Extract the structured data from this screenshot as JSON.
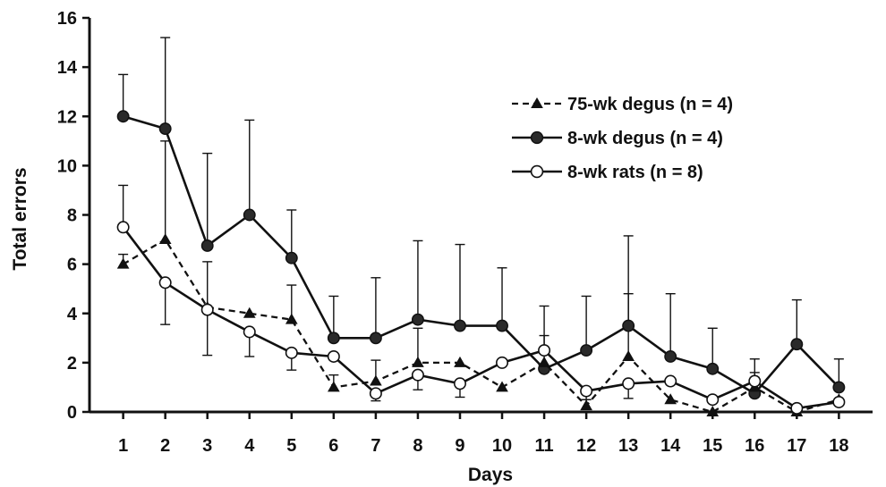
{
  "chart_data": {
    "type": "line",
    "title": "",
    "xlabel": "Days",
    "ylabel": "Total errors",
    "x": [
      1,
      2,
      3,
      4,
      5,
      6,
      7,
      8,
      9,
      10,
      11,
      12,
      13,
      14,
      15,
      16,
      17,
      18
    ],
    "xlim": [
      0.2,
      18.8
    ],
    "ylim": [
      0,
      16
    ],
    "yticks": [
      0,
      2,
      4,
      6,
      8,
      10,
      12,
      14,
      16
    ],
    "grid": false,
    "legend_position": "top-right",
    "series": [
      {
        "name": "75-wk degus (n = 4)",
        "line_style": "dashed",
        "marker": "triangle-filled",
        "values": [
          6.0,
          7.0,
          4.25,
          4.0,
          3.75,
          1.0,
          1.25,
          2.0,
          2.0,
          1.0,
          2.0,
          0.25,
          2.25,
          0.5,
          0.0,
          1.0,
          0.0,
          0.5
        ],
        "error_upper": [
          6.4,
          11.0,
          6.1,
          4.0,
          5.15,
          1.5,
          2.1,
          3.4,
          2.0,
          1.0,
          2.0,
          0.5,
          4.8,
          0.5,
          0.0,
          1.4,
          0.0,
          0.5
        ]
      },
      {
        "name": "8-wk degus (n = 4)",
        "line_style": "solid",
        "marker": "circle-filled",
        "values": [
          12.0,
          11.5,
          6.75,
          8.0,
          6.25,
          3.0,
          3.0,
          3.75,
          3.5,
          3.5,
          1.75,
          2.5,
          3.5,
          2.25,
          1.75,
          0.75,
          2.75,
          1.0
        ],
        "error_upper": [
          13.7,
          15.2,
          10.5,
          11.85,
          8.2,
          4.7,
          5.45,
          6.95,
          6.8,
          5.85,
          4.3,
          4.7,
          7.15,
          4.8,
          3.4,
          2.15,
          4.55,
          2.15
        ]
      },
      {
        "name": "8-wk rats (n = 8)",
        "line_style": "solid",
        "marker": "circle-open",
        "values": [
          7.5,
          5.25,
          4.15,
          3.25,
          2.4,
          2.25,
          0.75,
          1.5,
          1.15,
          2.0,
          2.5,
          0.85,
          1.15,
          1.25,
          0.5,
          1.25,
          0.15,
          0.4
        ],
        "error_upper": [
          9.2,
          5.25,
          4.15,
          3.25,
          2.4,
          2.25,
          0.75,
          1.5,
          1.15,
          2.0,
          3.1,
          0.85,
          1.15,
          1.25,
          0.5,
          1.6,
          0.15,
          0.4
        ],
        "error_lower": [
          7.5,
          3.55,
          2.3,
          2.25,
          1.7,
          2.25,
          0.45,
          0.9,
          0.6,
          2.0,
          2.5,
          0.5,
          0.55,
          1.25,
          0.5,
          1.25,
          0.15,
          0.4
        ]
      }
    ]
  }
}
